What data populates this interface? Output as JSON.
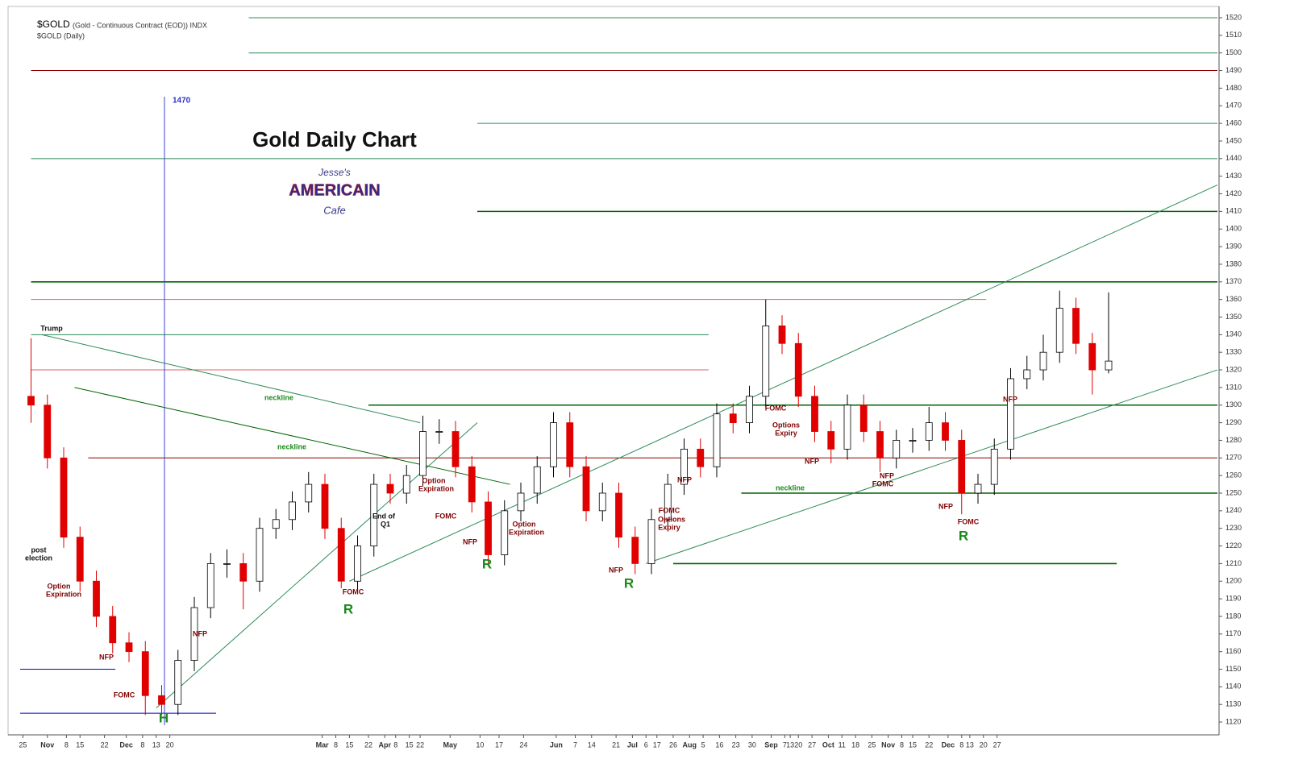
{
  "chart_data": {
    "type": "candlestick",
    "title": "Gold Daily Chart",
    "symbol": "$GOLD",
    "symbol_desc": "(Gold - Continuous Contract (EOD)) INDX",
    "subtitle": "$GOLD (Daily)",
    "logo": [
      "Jesse's",
      "AMERICAIN",
      "Cafe"
    ],
    "marker_label": "1470",
    "up_color": "#ffffff",
    "down_color": "#e00000",
    "xlim": [
      0,
      440
    ],
    "ylim": [
      1115,
      1520
    ],
    "xticks": [
      {
        "value": 1,
        "label": "25"
      },
      {
        "value": 10,
        "label": "Nov"
      },
      {
        "value": 17,
        "label": "8"
      },
      {
        "value": 22,
        "label": "15"
      },
      {
        "value": 31,
        "label": "22"
      },
      {
        "value": 39,
        "label": "Dec"
      },
      {
        "value": 45,
        "label": "8"
      },
      {
        "value": 50,
        "label": "13"
      },
      {
        "value": 55,
        "label": "20"
      },
      {
        "value": 111,
        "label": "Mar"
      },
      {
        "value": 116,
        "label": "8"
      },
      {
        "value": 121,
        "label": "15"
      },
      {
        "value": 128,
        "label": "22"
      },
      {
        "value": 134,
        "label": "Apr"
      },
      {
        "value": 138,
        "label": "8"
      },
      {
        "value": 143,
        "label": "15"
      },
      {
        "value": 147,
        "label": "22"
      },
      {
        "value": 158,
        "label": "May"
      },
      {
        "value": 169,
        "label": "10"
      },
      {
        "value": 176,
        "label": "17"
      },
      {
        "value": 185,
        "label": "24"
      },
      {
        "value": 197,
        "label": "Jun"
      },
      {
        "value": 204,
        "label": "7"
      },
      {
        "value": 210,
        "label": "14"
      },
      {
        "value": 219,
        "label": "21"
      },
      {
        "value": 225,
        "label": "Jul"
      },
      {
        "value": 230,
        "label": "6"
      },
      {
        "value": 234,
        "label": "17"
      },
      {
        "value": 240,
        "label": "26"
      },
      {
        "value": 246,
        "label": "Aug"
      },
      {
        "value": 251,
        "label": "5"
      },
      {
        "value": 257,
        "label": "16"
      },
      {
        "value": 263,
        "label": "23"
      },
      {
        "value": 269,
        "label": "30"
      },
      {
        "value": 276,
        "label": "Sep"
      },
      {
        "value": 281,
        "label": "7"
      },
      {
        "value": 283,
        "label": "13"
      },
      {
        "value": 286,
        "label": "20"
      },
      {
        "value": 291,
        "label": "27"
      },
      {
        "value": 297,
        "label": "Oct"
      },
      {
        "value": 302,
        "label": "11"
      },
      {
        "value": 307,
        "label": "18"
      },
      {
        "value": 313,
        "label": "25"
      },
      {
        "value": 319,
        "label": "Nov"
      },
      {
        "value": 324,
        "label": "8"
      },
      {
        "value": 328,
        "label": "15"
      },
      {
        "value": 334,
        "label": "22"
      },
      {
        "value": 341,
        "label": "Dec"
      },
      {
        "value": 346,
        "label": "8"
      },
      {
        "value": 349,
        "label": "13"
      },
      {
        "value": 354,
        "label": "20"
      },
      {
        "value": 359,
        "label": "27"
      }
    ],
    "yticks": [
      1120,
      1130,
      1140,
      1150,
      1160,
      1170,
      1180,
      1190,
      1200,
      1210,
      1220,
      1230,
      1240,
      1250,
      1260,
      1270,
      1280,
      1290,
      1300,
      1310,
      1320,
      1330,
      1340,
      1350,
      1360,
      1370,
      1380,
      1390,
      1400,
      1410,
      1420,
      1430,
      1440,
      1450,
      1460,
      1470,
      1480,
      1490,
      1500,
      1510,
      1520
    ],
    "x": [
      4,
      10,
      16,
      22,
      28,
      34,
      40,
      46,
      52,
      58,
      64,
      70,
      76,
      82,
      88,
      94,
      100,
      106,
      112,
      118,
      124,
      130,
      136,
      142,
      148,
      154,
      160,
      166,
      172,
      178,
      184,
      190,
      196,
      202,
      208,
      214,
      220,
      226,
      232,
      238,
      244,
      250,
      256,
      262,
      268,
      274,
      280,
      286,
      292,
      298,
      304,
      310,
      316,
      322,
      328,
      334,
      340,
      346,
      352,
      358,
      364,
      370,
      376,
      382,
      388,
      394,
      400
    ],
    "open": [
      1305,
      1300,
      1270,
      1225,
      1200,
      1180,
      1165,
      1160,
      1135,
      1130,
      1155,
      1185,
      1210,
      1210,
      1200,
      1230,
      1235,
      1245,
      1255,
      1230,
      1200,
      1220,
      1255,
      1250,
      1260,
      1285,
      1285,
      1265,
      1245,
      1215,
      1240,
      1250,
      1265,
      1290,
      1265,
      1240,
      1250,
      1225,
      1210,
      1235,
      1255,
      1275,
      1265,
      1295,
      1290,
      1305,
      1345,
      1335,
      1305,
      1285,
      1275,
      1300,
      1285,
      1270,
      1280,
      1280,
      1290,
      1280,
      1250,
      1255,
      1275,
      1315,
      1320,
      1330,
      1355,
      1335,
      1320
    ],
    "high": [
      1338,
      1306,
      1276,
      1231,
      1206,
      1186,
      1171,
      1166,
      1141,
      1161,
      1191,
      1216,
      1218,
      1216,
      1236,
      1241,
      1251,
      1262,
      1261,
      1236,
      1226,
      1261,
      1261,
      1266,
      1294,
      1292,
      1291,
      1271,
      1251,
      1246,
      1256,
      1271,
      1296,
      1296,
      1271,
      1256,
      1256,
      1231,
      1241,
      1261,
      1281,
      1281,
      1301,
      1301,
      1311,
      1360,
      1351,
      1341,
      1311,
      1291,
      1306,
      1306,
      1291,
      1286,
      1287,
      1299,
      1296,
      1286,
      1261,
      1281,
      1321,
      1328,
      1340,
      1365,
      1361,
      1341,
      1364
    ],
    "low": [
      1290,
      1264,
      1219,
      1194,
      1174,
      1159,
      1154,
      1124,
      1124,
      1124,
      1149,
      1179,
      1202,
      1184,
      1194,
      1224,
      1229,
      1239,
      1224,
      1196,
      1194,
      1214,
      1244,
      1244,
      1254,
      1278,
      1259,
      1239,
      1209,
      1209,
      1234,
      1244,
      1259,
      1259,
      1234,
      1234,
      1219,
      1204,
      1204,
      1229,
      1249,
      1259,
      1259,
      1284,
      1284,
      1299,
      1329,
      1299,
      1279,
      1267,
      1269,
      1279,
      1262,
      1264,
      1273,
      1274,
      1274,
      1238,
      1244,
      1249,
      1269,
      1309,
      1314,
      1324,
      1329,
      1306,
      1318
    ],
    "close": [
      1300,
      1270,
      1225,
      1200,
      1180,
      1165,
      1160,
      1135,
      1130,
      1155,
      1185,
      1210,
      1210,
      1200,
      1230,
      1235,
      1245,
      1255,
      1230,
      1200,
      1220,
      1255,
      1250,
      1260,
      1285,
      1285,
      1265,
      1245,
      1215,
      1240,
      1250,
      1265,
      1290,
      1265,
      1240,
      1250,
      1225,
      1210,
      1235,
      1255,
      1275,
      1265,
      1295,
      1290,
      1305,
      1345,
      1335,
      1305,
      1285,
      1275,
      1300,
      1285,
      1270,
      1280,
      1280,
      1290,
      1280,
      1250,
      1255,
      1275,
      1315,
      1320,
      1330,
      1355,
      1335,
      1320,
      1325
    ],
    "levels": [
      {
        "value": 1520,
        "color": "#2e8b57",
        "x": [
          84,
          440
        ]
      },
      {
        "value": 1500,
        "color": "#2e8b57",
        "x": [
          84,
          440
        ]
      },
      {
        "value": 1490,
        "color": "#8b0000",
        "x": [
          4,
          440
        ]
      },
      {
        "value": 1460,
        "color": "#2e8b57",
        "x": [
          168,
          440
        ]
      },
      {
        "value": 1440,
        "color": "#2e8b57",
        "x": [
          4,
          440
        ]
      },
      {
        "value": 1410,
        "color": "#006400",
        "x": [
          168,
          440
        ]
      },
      {
        "value": 1370,
        "color": "#006400",
        "x": [
          4,
          440
        ]
      },
      {
        "value": 1360,
        "color": "#e06060",
        "x": [
          4,
          355
        ]
      },
      {
        "value": 1340,
        "color": "#2e8b57",
        "x": [
          4,
          253
        ]
      },
      {
        "value": 1320,
        "color": "#e06060",
        "x": [
          4,
          253
        ]
      },
      {
        "value": 1300,
        "color": "#006400",
        "x": [
          128,
          440
        ]
      },
      {
        "value": 1270,
        "color": "#8b0000",
        "x": [
          25,
          440
        ]
      },
      {
        "value": 1250,
        "color": "#006400",
        "x": [
          265,
          440
        ]
      },
      {
        "value": 1210,
        "color": "#006400",
        "x": [
          240,
          403
        ]
      },
      {
        "value": 1150,
        "color": "#0000cc",
        "x": [
          0,
          35
        ]
      },
      {
        "value": 1125,
        "color": "#0000cc",
        "x": [
          0,
          72
        ]
      }
    ],
    "trendlines": [
      {
        "points": [
          [
            50,
            1128
          ],
          [
            168,
            1290
          ]
        ],
        "color": "#2e8b57"
      },
      {
        "points": [
          [
            121,
            1200
          ],
          [
            440,
            1425
          ]
        ],
        "color": "#2e8b57"
      },
      {
        "points": [
          [
            8,
            1340
          ],
          [
            147,
            1290
          ]
        ],
        "color": "#2e8b57"
      },
      {
        "points": [
          [
            230,
            1210
          ],
          [
            440,
            1320
          ]
        ],
        "color": "#2e8b57"
      },
      {
        "points": [
          [
            20,
            1310
          ],
          [
            180,
            1255
          ]
        ],
        "color": "#006400"
      }
    ],
    "annotations": [
      "Trump",
      "post",
      "election",
      "Option",
      "Expiration",
      "NFP",
      "FOMC",
      "H",
      "NFP",
      "neckline",
      "neckline",
      "End of",
      "Q1",
      "FOMC",
      "R",
      "Option",
      "Expiration",
      "FOMC",
      "NFP",
      "R",
      "Option",
      "Expiration",
      "NFP",
      "R",
      "FOMC",
      "Options",
      "Expiry",
      "NFP",
      "FOMC",
      "Options",
      "Expiry",
      "NFP",
      "neckline",
      "NFP",
      "FOMC",
      "NFP",
      "FOMC",
      "R",
      "NFP"
    ]
  }
}
